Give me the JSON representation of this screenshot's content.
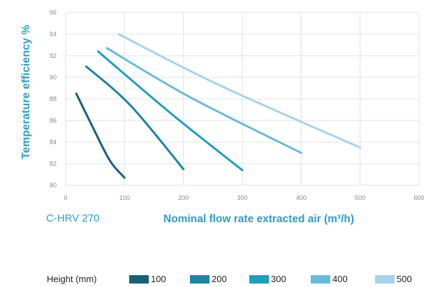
{
  "chart_data": {
    "type": "line",
    "ylabel": "Temperature efficiency %",
    "xlabel": "Nominal flow rate extracted air (m³/h)",
    "model_label": "C-HRV 270",
    "xlim": [
      0,
      600
    ],
    "ylim": [
      80,
      96
    ],
    "x_ticks": [
      "0",
      "100",
      "200",
      "300",
      "400",
      "500",
      "600"
    ],
    "y_ticks": [
      "80",
      "82",
      "84",
      "86",
      "88",
      "90",
      "92",
      "94",
      "96"
    ],
    "grid": true,
    "legend": {
      "title": "Height (mm)",
      "position": "bottom"
    },
    "series": [
      {
        "name": "100",
        "color": "#17607a",
        "points": [
          [
            18,
            88.5
          ],
          [
            45,
            85.5
          ],
          [
            75,
            82.3
          ],
          [
            100,
            80.7
          ]
        ]
      },
      {
        "name": "200",
        "color": "#1a85a6",
        "points": [
          [
            35,
            91.0
          ],
          [
            110,
            87.4
          ],
          [
            200,
            81.5
          ]
        ]
      },
      {
        "name": "300",
        "color": "#1e9ec0",
        "points": [
          [
            55,
            92.4
          ],
          [
            180,
            86.6
          ],
          [
            300,
            81.4
          ]
        ]
      },
      {
        "name": "400",
        "color": "#64bcdc",
        "points": [
          [
            70,
            92.7
          ],
          [
            210,
            88.2
          ],
          [
            400,
            83.0
          ]
        ]
      },
      {
        "name": "500",
        "color": "#a5d3ea",
        "points": [
          [
            90,
            94.0
          ],
          [
            260,
            89.3
          ],
          [
            500,
            83.5
          ]
        ]
      }
    ]
  }
}
